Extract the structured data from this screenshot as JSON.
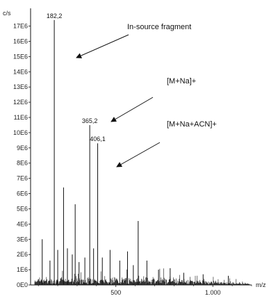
{
  "chart_data": {
    "type": "line",
    "y_unit": "c/s",
    "x_unit": "m/z",
    "xlim": [
      60,
      1200
    ],
    "ylim": [
      0,
      17800000
    ],
    "y_ticks": [
      {
        "value": 0,
        "label": "0E0"
      },
      {
        "value": 1000000,
        "label": "1E6"
      },
      {
        "value": 2000000,
        "label": "2E6"
      },
      {
        "value": 3000000,
        "label": "3E6"
      },
      {
        "value": 4000000,
        "label": "4E6"
      },
      {
        "value": 5000000,
        "label": "5E6"
      },
      {
        "value": 6000000,
        "label": "6E6"
      },
      {
        "value": 7000000,
        "label": "7E6"
      },
      {
        "value": 8000000,
        "label": "8E6"
      },
      {
        "value": 9000000,
        "label": "9E6"
      },
      {
        "value": 10000000,
        "label": "10E6"
      },
      {
        "value": 11000000,
        "label": "11E6"
      },
      {
        "value": 12000000,
        "label": "12E6"
      },
      {
        "value": 13000000,
        "label": "13E6"
      },
      {
        "value": 14000000,
        "label": "14E6"
      },
      {
        "value": 15000000,
        "label": "15E6"
      },
      {
        "value": 16000000,
        "label": "16E6"
      },
      {
        "value": 17000000,
        "label": "17E6"
      }
    ],
    "x_ticks": [
      {
        "value": 500,
        "label": "500"
      },
      {
        "value": 1000,
        "label": "1.000"
      }
    ],
    "peaks": [
      {
        "mz": 120,
        "intensity": 3000000
      },
      {
        "mz": 160,
        "intensity": 1600000
      },
      {
        "mz": 182.2,
        "intensity": 17400000,
        "label": "182,2"
      },
      {
        "mz": 200,
        "intensity": 2300000
      },
      {
        "mz": 230,
        "intensity": 6400000
      },
      {
        "mz": 250,
        "intensity": 2400000
      },
      {
        "mz": 275,
        "intensity": 2000000
      },
      {
        "mz": 290,
        "intensity": 5300000
      },
      {
        "mz": 310,
        "intensity": 1500000
      },
      {
        "mz": 340,
        "intensity": 1800000
      },
      {
        "mz": 365.2,
        "intensity": 10500000,
        "label": "365,2"
      },
      {
        "mz": 385,
        "intensity": 2400000
      },
      {
        "mz": 406.1,
        "intensity": 9300000,
        "label": "406,1"
      },
      {
        "mz": 430,
        "intensity": 1800000
      },
      {
        "mz": 470,
        "intensity": 2300000
      },
      {
        "mz": 520,
        "intensity": 1600000
      },
      {
        "mz": 560,
        "intensity": 2200000
      },
      {
        "mz": 590,
        "intensity": 1300000
      },
      {
        "mz": 615,
        "intensity": 4200000
      },
      {
        "mz": 660,
        "intensity": 1600000
      },
      {
        "mz": 720,
        "intensity": 1000000
      },
      {
        "mz": 780,
        "intensity": 1100000
      },
      {
        "mz": 850,
        "intensity": 800000
      },
      {
        "mz": 950,
        "intensity": 700000
      },
      {
        "mz": 1080,
        "intensity": 600000
      }
    ],
    "annotations": [
      {
        "text": "In-source fragment",
        "target_peak": 182.2
      },
      {
        "text": "[M+Na]+",
        "target_peak": 365.2
      },
      {
        "text": "[M+Na+ACN]+",
        "target_peak": 406.1
      }
    ]
  }
}
